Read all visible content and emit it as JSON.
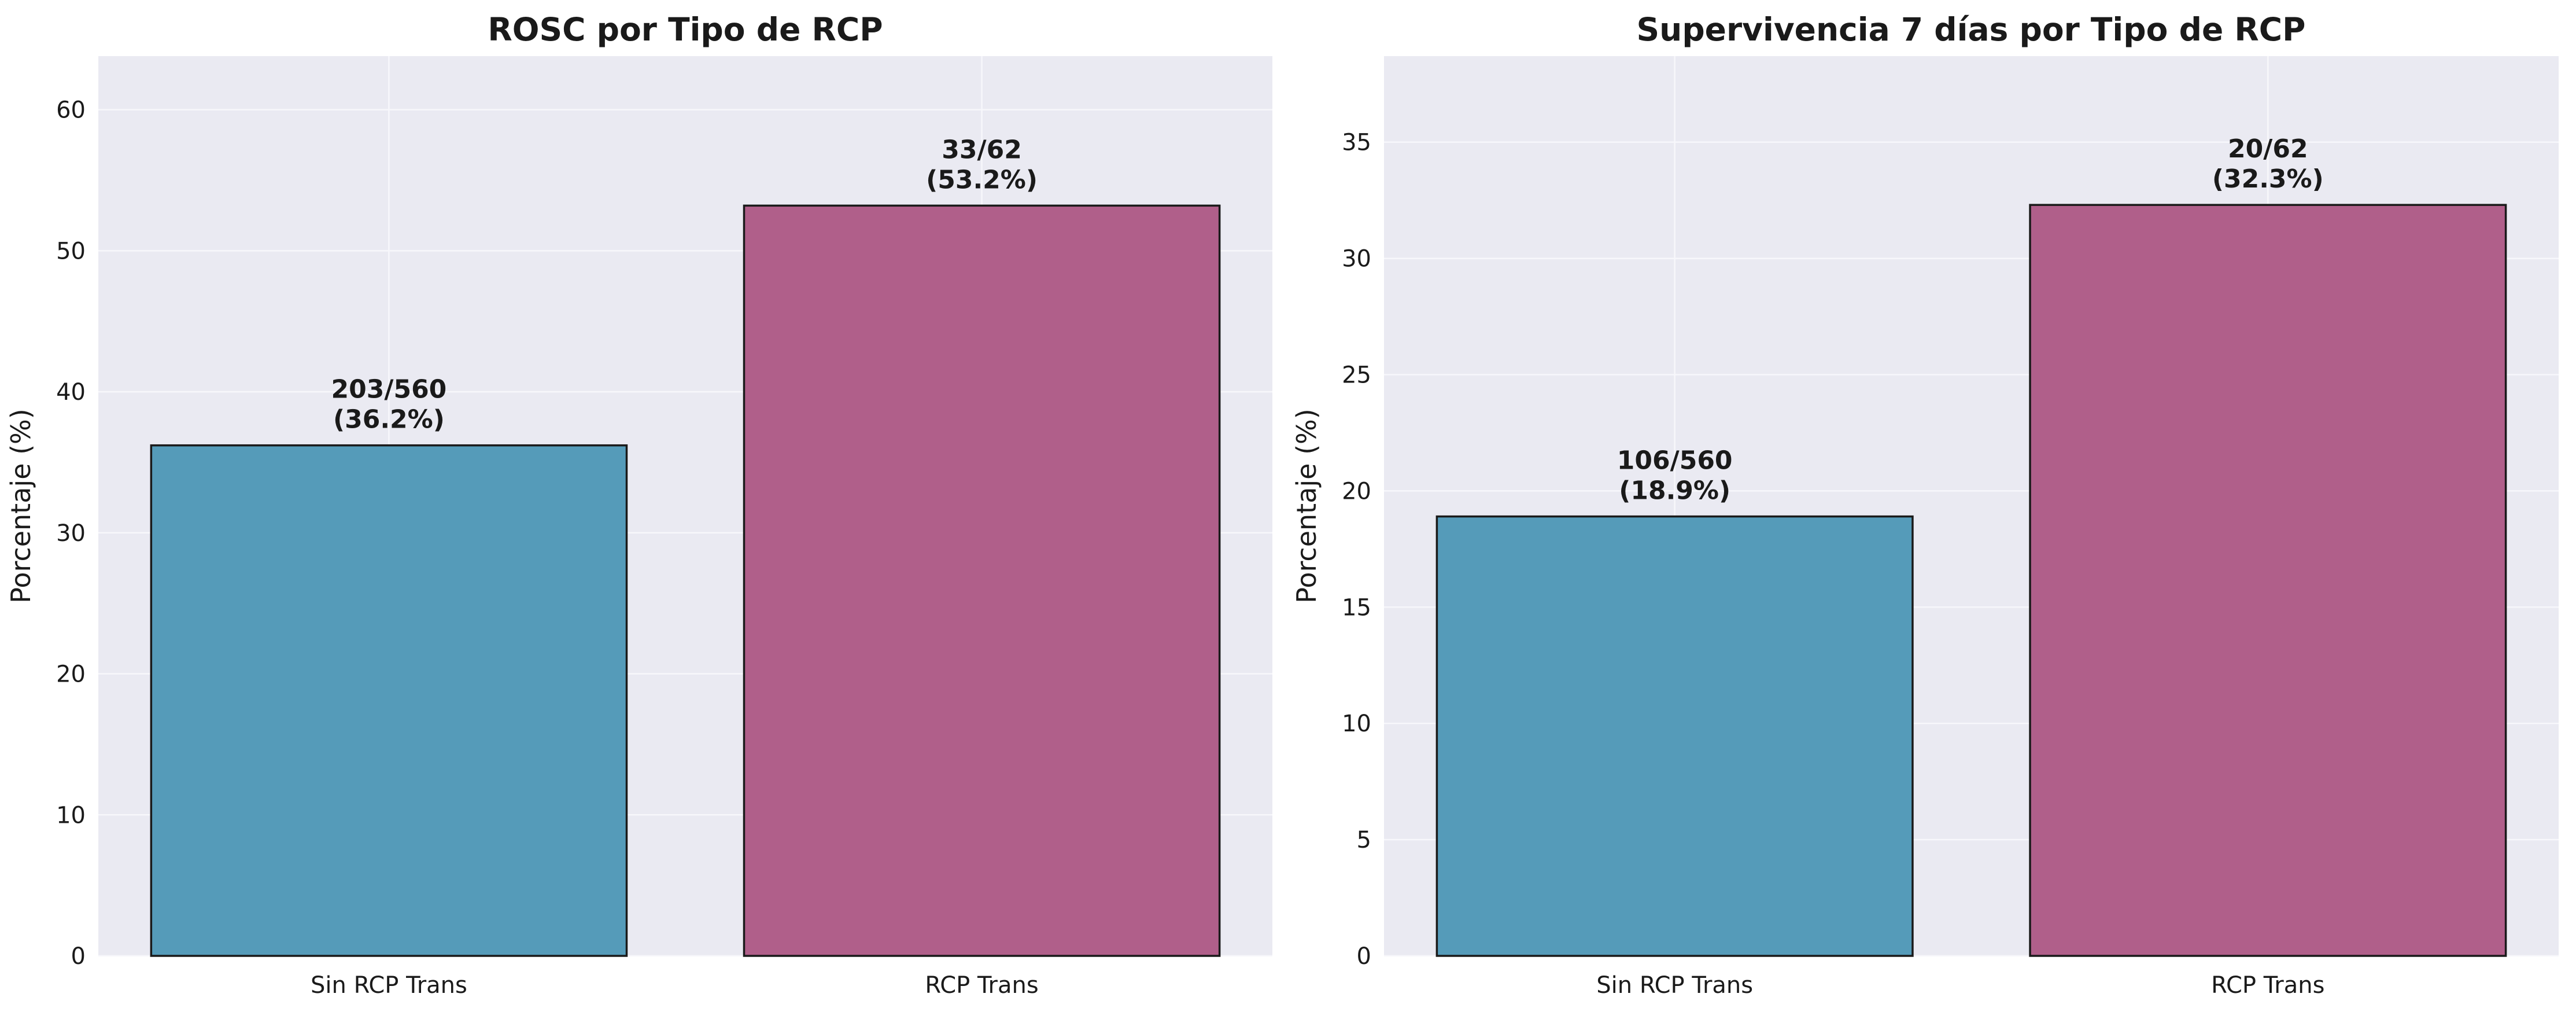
{
  "colors": {
    "panel_bg": "#eaeaf2",
    "grid": "#f7f7fb",
    "bar_sin": "#559bb9",
    "bar_rcp": "#b05f8a",
    "edge": "#1a1a1a"
  },
  "chart_data": [
    {
      "type": "bar",
      "title": "ROSC por Tipo de RCP",
      "xlabel": "",
      "ylabel": "Porcentaje (%)",
      "categories": [
        "Sin RCP Trans",
        "RCP Trans"
      ],
      "values": [
        36.2,
        53.2
      ],
      "bar_colors": [
        "#559bb9",
        "#b05f8a"
      ],
      "data_labels": [
        [
          "203/560",
          "(36.2%)"
        ],
        [
          "33/62",
          "(53.2%)"
        ]
      ],
      "ylim": [
        0,
        63.8
      ],
      "yticks": [
        0,
        10,
        20,
        30,
        40,
        50,
        60
      ],
      "grid": true
    },
    {
      "type": "bar",
      "title": "Supervivencia 7 días por Tipo de RCP",
      "xlabel": "",
      "ylabel": "Porcentaje (%)",
      "categories": [
        "Sin RCP Trans",
        "RCP Trans"
      ],
      "values": [
        18.9,
        32.3
      ],
      "bar_colors": [
        "#559bb9",
        "#b05f8a"
      ],
      "data_labels": [
        [
          "106/560",
          "(18.9%)"
        ],
        [
          "20/62",
          "(32.3%)"
        ]
      ],
      "ylim": [
        0,
        38.7
      ],
      "yticks": [
        0,
        5,
        10,
        15,
        20,
        25,
        30,
        35
      ],
      "grid": true
    }
  ]
}
